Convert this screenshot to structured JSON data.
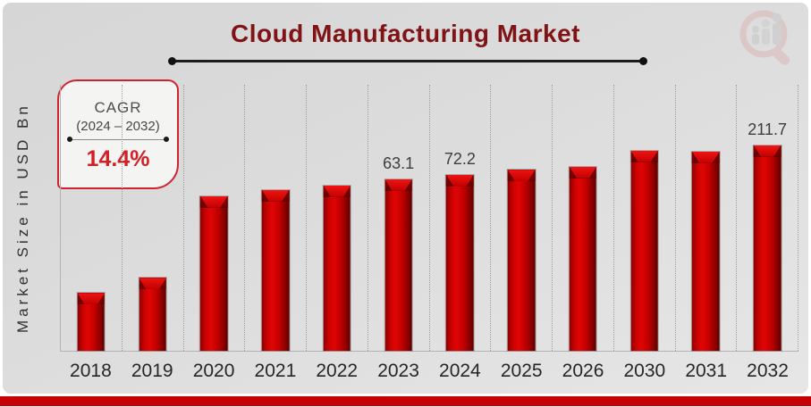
{
  "header": {
    "title": "Cloud Manufacturing Market",
    "logo": "market-research-future-logo"
  },
  "cagr_box": {
    "heading": "CAGR",
    "period": "(2024 – 2032)",
    "value": "14.4%"
  },
  "chart_data": {
    "type": "bar",
    "title": "Cloud Manufacturing Market",
    "xlabel": "",
    "ylabel": "Market Size in USD Bn",
    "unit": "USD Bn",
    "legend_position": "none",
    "grid": "vertical-dotted",
    "categories": [
      "2018",
      "2019",
      "2020",
      "2021",
      "2022",
      "2023",
      "2024",
      "2025",
      "2026",
      "2030",
      "2031",
      "2032"
    ],
    "series": [
      {
        "name": "Market Size in USD Bn",
        "values": [
          null,
          null,
          null,
          null,
          null,
          63.1,
          72.2,
          null,
          null,
          null,
          null,
          211.7
        ]
      }
    ],
    "data_labels": [
      "",
      "",
      "",
      "",
      "",
      "63.1",
      "72.2",
      "",
      "",
      "",
      "",
      "211.7"
    ],
    "bar_height_pct": [
      21.7,
      27.4,
      58.2,
      60.5,
      62.2,
      64.5,
      66.2,
      68,
      69.3,
      75.3,
      74.9,
      77.3
    ],
    "cagr": {
      "label": "CAGR",
      "period": "2024–2032",
      "value_pct": 14.4
    },
    "note": "bar heights not drawn to linear scale in source image"
  },
  "colors": {
    "background": "#dcdcdc",
    "bar_red": "#c40000",
    "title_maroon": "#7f1315",
    "cagr_value_red": "#d22027",
    "bottom_strip_red": "#c50104",
    "axis_text": "#262626"
  }
}
